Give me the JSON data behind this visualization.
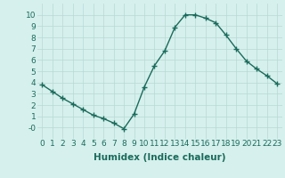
{
  "x": [
    0,
    1,
    2,
    3,
    4,
    5,
    6,
    7,
    8,
    9,
    10,
    11,
    12,
    13,
    14,
    15,
    16,
    17,
    18,
    19,
    20,
    21,
    22,
    23
  ],
  "y": [
    3.8,
    3.2,
    2.6,
    2.1,
    1.6,
    1.1,
    0.8,
    0.4,
    -0.1,
    1.2,
    3.6,
    5.5,
    6.8,
    8.9,
    10.0,
    10.0,
    9.7,
    9.3,
    8.2,
    7.0,
    5.9,
    5.2,
    4.6,
    3.9
  ],
  "line_color": "#1a6b5a",
  "marker": "+",
  "marker_size": 4,
  "background_color": "#d6f0ee",
  "grid_color": "#b8d8d4",
  "xlabel": "Humidex (Indice chaleur)",
  "xlabel_fontsize": 7.5,
  "tick_fontsize": 6.5,
  "ylim": [
    -1,
    11
  ],
  "xlim": [
    -0.5,
    23.5
  ],
  "yticks": [
    0,
    1,
    2,
    3,
    4,
    5,
    6,
    7,
    8,
    9,
    10
  ],
  "ytick_labels": [
    "-0",
    "1",
    "2",
    "3",
    "4",
    "5",
    "6",
    "7",
    "8",
    "9",
    "10"
  ],
  "xticks": [
    0,
    1,
    2,
    3,
    4,
    5,
    6,
    7,
    8,
    9,
    10,
    11,
    12,
    13,
    14,
    15,
    16,
    17,
    18,
    19,
    20,
    21,
    22,
    23
  ]
}
